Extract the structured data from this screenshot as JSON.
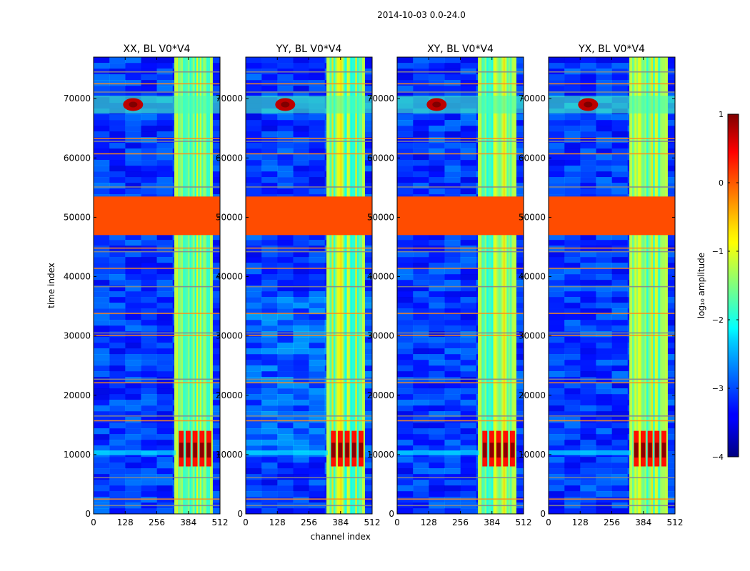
{
  "figure": {
    "suptitle": "2014-10-03 0.0-24.0"
  },
  "chart_data": {
    "type": "heatmap",
    "xlabel": "channel index",
    "ylabel": "time index",
    "xlim": [
      0,
      512
    ],
    "ylim": [
      0,
      77000
    ],
    "xticks": [
      0,
      128,
      256,
      384,
      512
    ],
    "yticks": [
      0,
      10000,
      20000,
      30000,
      40000,
      50000,
      60000,
      70000
    ],
    "panels": [
      {
        "title": "XX, BL V0*V4"
      },
      {
        "title": "YY, BL V0*V4"
      },
      {
        "title": "XY, BL V0*V4"
      },
      {
        "title": "YX, BL V0*V4"
      }
    ],
    "flagged_time_range": [
      47000,
      53500
    ],
    "flagged_value": 0,
    "bright_channel_range": [
      330,
      480
    ],
    "burst_time_range": [
      8000,
      14000
    ],
    "colorbar": {
      "label": "log₁₀ amplitude",
      "range": [
        -4,
        1
      ],
      "ticks": [
        1,
        0,
        -1,
        -2,
        -3,
        -4
      ],
      "tick_labels": [
        "1",
        "0",
        "−1",
        "−2",
        "−3",
        "−4"
      ]
    }
  }
}
